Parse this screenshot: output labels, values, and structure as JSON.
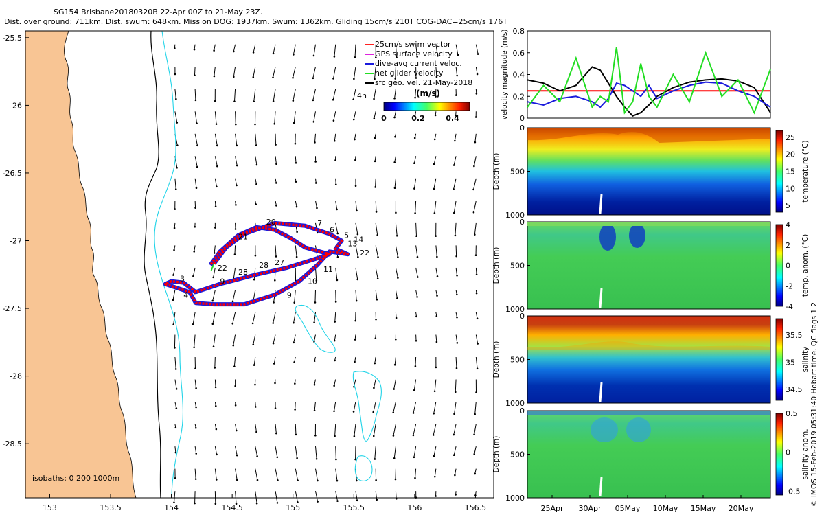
{
  "header": {
    "title_line1": "SG154 Brisbane20180320B 22-Apr 00Z to 21-May 23Z.",
    "title_line2": "Dist. over ground: 711km. Dist. swum: 648km. Mission DOG: 1937km. Swum: 1362km. Gliding 15cm/s 210T COG-DAC=25cm/s 176T"
  },
  "colors": {
    "land": "#f8c594",
    "coast_isobath": "#000000",
    "isobath_200": "#22d4e8",
    "track_red": "#ff0000",
    "track_blue": "#1a1adc",
    "net_green": "#22dd22",
    "swim_vector": "#ff2020",
    "gps_vel": "#dd22dd"
  },
  "map": {
    "xlim": [
      152.8,
      156.65
    ],
    "ylim": [
      -28.9,
      -25.45
    ],
    "xticks": [
      "153",
      "153.5",
      "154",
      "154.5",
      "155",
      "155.5",
      "156",
      "156.5"
    ],
    "yticks": [
      "-25.5",
      "-26",
      "-26.5",
      "-27",
      "-27.5",
      "-28",
      "-28.5"
    ],
    "isobath_label": "isobaths: 0   200  1000m",
    "legend": [
      {
        "label": "25cm/s swim vector",
        "color": "#ff2020"
      },
      {
        "label": "GPS surface velocity",
        "color": "#dd22dd"
      },
      {
        "label": "dive-avg current veloc.",
        "color": "#1a1adc"
      },
      {
        "label": "net glider velocity",
        "color": "#22dd22"
      },
      {
        "label": "sfc geo. vel. 21-May-2018",
        "color": "#000000"
      }
    ],
    "colorbar": {
      "title": "(m/s)",
      "ticks": [
        "0",
        "0.2",
        "0.4"
      ],
      "range": [
        0,
        0.5
      ]
    },
    "dot_label": "4h",
    "track": [
      [
        154.35,
        -27.17
      ],
      [
        154.45,
        -27.05
      ],
      [
        154.6,
        -26.95
      ],
      [
        154.85,
        -26.87
      ],
      [
        155.1,
        -26.89
      ],
      [
        155.3,
        -26.95
      ],
      [
        155.4,
        -27.0
      ],
      [
        155.35,
        -27.06
      ],
      [
        155.45,
        -27.1
      ],
      [
        155.3,
        -27.08
      ],
      [
        155.2,
        -27.18
      ],
      [
        155.05,
        -27.3
      ],
      [
        154.85,
        -27.4
      ],
      [
        154.6,
        -27.47
      ],
      [
        154.35,
        -27.47
      ],
      [
        154.2,
        -27.46
      ],
      [
        154.15,
        -27.38
      ],
      [
        154.05,
        -27.35
      ],
      [
        153.95,
        -27.32
      ],
      [
        154.0,
        -27.3
      ],
      [
        154.1,
        -27.31
      ],
      [
        154.2,
        -27.38
      ],
      [
        154.4,
        -27.32
      ],
      [
        154.7,
        -27.25
      ],
      [
        154.95,
        -27.2
      ],
      [
        155.2,
        -27.13
      ],
      [
        155.3,
        -27.1
      ],
      [
        155.1,
        -27.05
      ],
      [
        154.98,
        -26.98
      ],
      [
        154.85,
        -26.92
      ],
      [
        154.7,
        -26.9
      ],
      [
        154.55,
        -26.96
      ],
      [
        154.4,
        -27.08
      ],
      [
        154.32,
        -27.18
      ]
    ],
    "track_labels": [
      {
        "t": "22",
        "lon": 154.38,
        "lat": -27.22
      },
      {
        "t": "21",
        "lon": 154.55,
        "lat": -26.99
      },
      {
        "t": "20",
        "lon": 154.78,
        "lat": -26.88
      },
      {
        "t": "7",
        "lon": 155.2,
        "lat": -26.89
      },
      {
        "t": "6",
        "lon": 155.3,
        "lat": -26.94
      },
      {
        "t": "5",
        "lon": 155.42,
        "lat": -26.98
      },
      {
        "t": "14",
        "lon": 155.5,
        "lat": -27.01
      },
      {
        "t": "13",
        "lon": 155.45,
        "lat": -27.04
      },
      {
        "t": "22",
        "lon": 155.55,
        "lat": -27.11
      },
      {
        "t": "11",
        "lon": 155.25,
        "lat": -27.23
      },
      {
        "t": "10",
        "lon": 155.12,
        "lat": -27.32
      },
      {
        "t": "9",
        "lon": 154.95,
        "lat": -27.42
      },
      {
        "t": "3",
        "lon": 154.07,
        "lat": -27.3
      },
      {
        "t": "4",
        "lon": 154.1,
        "lat": -27.42
      },
      {
        "t": "9",
        "lon": 154.4,
        "lat": -27.32
      },
      {
        "t": "28",
        "lon": 154.55,
        "lat": -27.25
      },
      {
        "t": "28",
        "lon": 154.72,
        "lat": -27.2
      },
      {
        "t": "27",
        "lon": 154.85,
        "lat": -27.18
      }
    ]
  },
  "chart_data": [
    {
      "type": "line",
      "title": "",
      "ylabel": "velocity magnitude (m/s)",
      "ylim": [
        0,
        0.8
      ],
      "yticks": [
        "0",
        "0.2",
        "0.4",
        "0.6",
        "0.8"
      ],
      "x": [
        0,
        2,
        4,
        6,
        8,
        9,
        10,
        11,
        12,
        13,
        14,
        15,
        16,
        18,
        20,
        22,
        24,
        26,
        28,
        30
      ],
      "series": [
        {
          "name": "swim",
          "color": "#ff0000",
          "values": [
            0.25,
            0.25,
            0.25,
            0.25,
            0.25,
            0.25,
            0.25,
            0.25,
            0.25,
            0.25,
            0.25,
            0.25,
            0.25,
            0.25,
            0.25,
            0.25,
            0.25,
            0.25,
            0.25,
            0.25
          ]
        },
        {
          "name": "geostrophic",
          "color": "#000000",
          "values": [
            0.35,
            0.32,
            0.25,
            0.3,
            0.47,
            0.44,
            0.32,
            0.2,
            0.1,
            0.02,
            0.05,
            0.12,
            0.2,
            0.28,
            0.33,
            0.35,
            0.36,
            0.34,
            0.28,
            0.05
          ]
        },
        {
          "name": "dive-avg",
          "color": "#1a1adc",
          "values": [
            0.15,
            0.12,
            0.18,
            0.2,
            0.15,
            0.1,
            0.18,
            0.32,
            0.3,
            0.25,
            0.2,
            0.3,
            0.18,
            0.25,
            0.3,
            0.33,
            0.32,
            0.25,
            0.2,
            0.1
          ]
        },
        {
          "name": "net",
          "color": "#22dd22",
          "values": [
            0.1,
            0.3,
            0.15,
            0.55,
            0.1,
            0.2,
            0.15,
            0.65,
            0.05,
            0.15,
            0.5,
            0.2,
            0.1,
            0.4,
            0.15,
            0.6,
            0.2,
            0.35,
            0.05,
            0.45
          ]
        }
      ]
    },
    {
      "type": "heatmap",
      "ylabel": "Depth (m)",
      "cbar_label": "temperature (°C)",
      "ylim": [
        1000,
        0
      ],
      "yticks": [
        "0",
        "500",
        "1000"
      ],
      "cticks": [
        "5",
        "10",
        "15",
        "20",
        "25"
      ]
    },
    {
      "type": "heatmap",
      "ylabel": "Depth (m)",
      "cbar_label": "temp. anom. (°C)",
      "ylim": [
        1000,
        0
      ],
      "yticks": [
        "0",
        "500",
        "1000"
      ],
      "cticks": [
        "-4",
        "-2",
        "0",
        "2",
        "4"
      ]
    },
    {
      "type": "heatmap",
      "ylabel": "Depth (m)",
      "cbar_label": "salinity",
      "ylim": [
        1000,
        0
      ],
      "yticks": [
        "0",
        "500",
        "1000"
      ],
      "cticks": [
        "34.5",
        "35",
        "35.5"
      ]
    },
    {
      "type": "heatmap",
      "ylabel": "Depth (m)",
      "cbar_label": "salinity anom.",
      "ylim": [
        1000,
        0
      ],
      "yticks": [
        "0",
        "500",
        "1000"
      ],
      "cticks": [
        "-0.5",
        "0",
        "0.5"
      ],
      "xticks": [
        "25Apr",
        "30Apr",
        "05May",
        "10May",
        "15May",
        "20May"
      ]
    }
  ],
  "footer": {
    "credit": "© IMOS 15-Feb-2019 05:31:40 Hobart time. QC flags 1  2"
  }
}
